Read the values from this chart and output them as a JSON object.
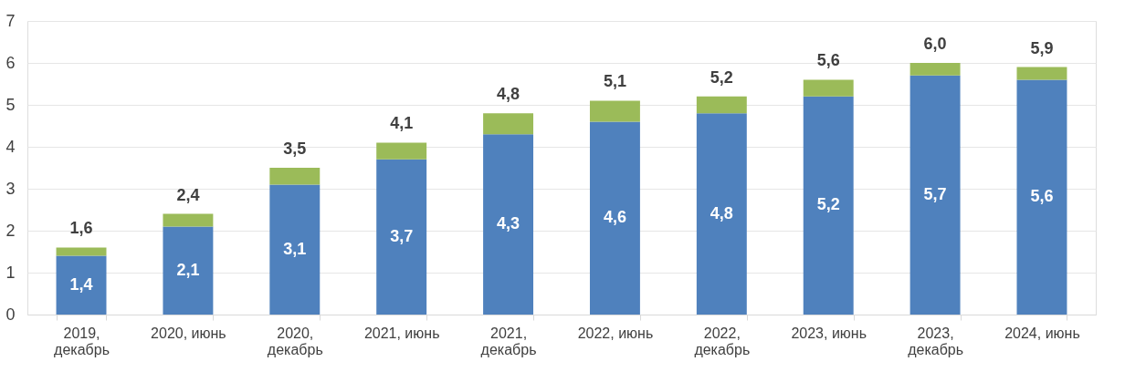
{
  "chart_data": {
    "type": "bar",
    "stacked": true,
    "categories": [
      "2019, декабрь",
      "2020, июнь",
      "2020, декабрь",
      "2021, июнь",
      "2021, декабрь",
      "2022, июнь",
      "2022, декабрь",
      "2023, июнь",
      "2023, декабрь",
      "2024, июнь"
    ],
    "series": [
      {
        "color": "#4f81bd",
        "values": [
          1.4,
          2.1,
          3.1,
          3.7,
          4.3,
          4.6,
          4.8,
          5.2,
          5.7,
          5.6
        ],
        "value_labels": [
          "1,4",
          "2,1",
          "3,1",
          "3,7",
          "4,3",
          "4,6",
          "4,8",
          "5,2",
          "5,7",
          "5,6"
        ]
      },
      {
        "color": "#9bbb59",
        "values": [
          0.2,
          0.3,
          0.4,
          0.4,
          0.5,
          0.5,
          0.4,
          0.4,
          0.3,
          0.3
        ]
      }
    ],
    "totals": [
      "1,6",
      "2,4",
      "3,5",
      "4,1",
      "4,8",
      "5,1",
      "5,2",
      "5,6",
      "6,0",
      "5,9"
    ],
    "ylim": [
      0,
      7
    ],
    "yticks": [
      0,
      1,
      2,
      3,
      4,
      5,
      6,
      7
    ],
    "grid": "y"
  }
}
